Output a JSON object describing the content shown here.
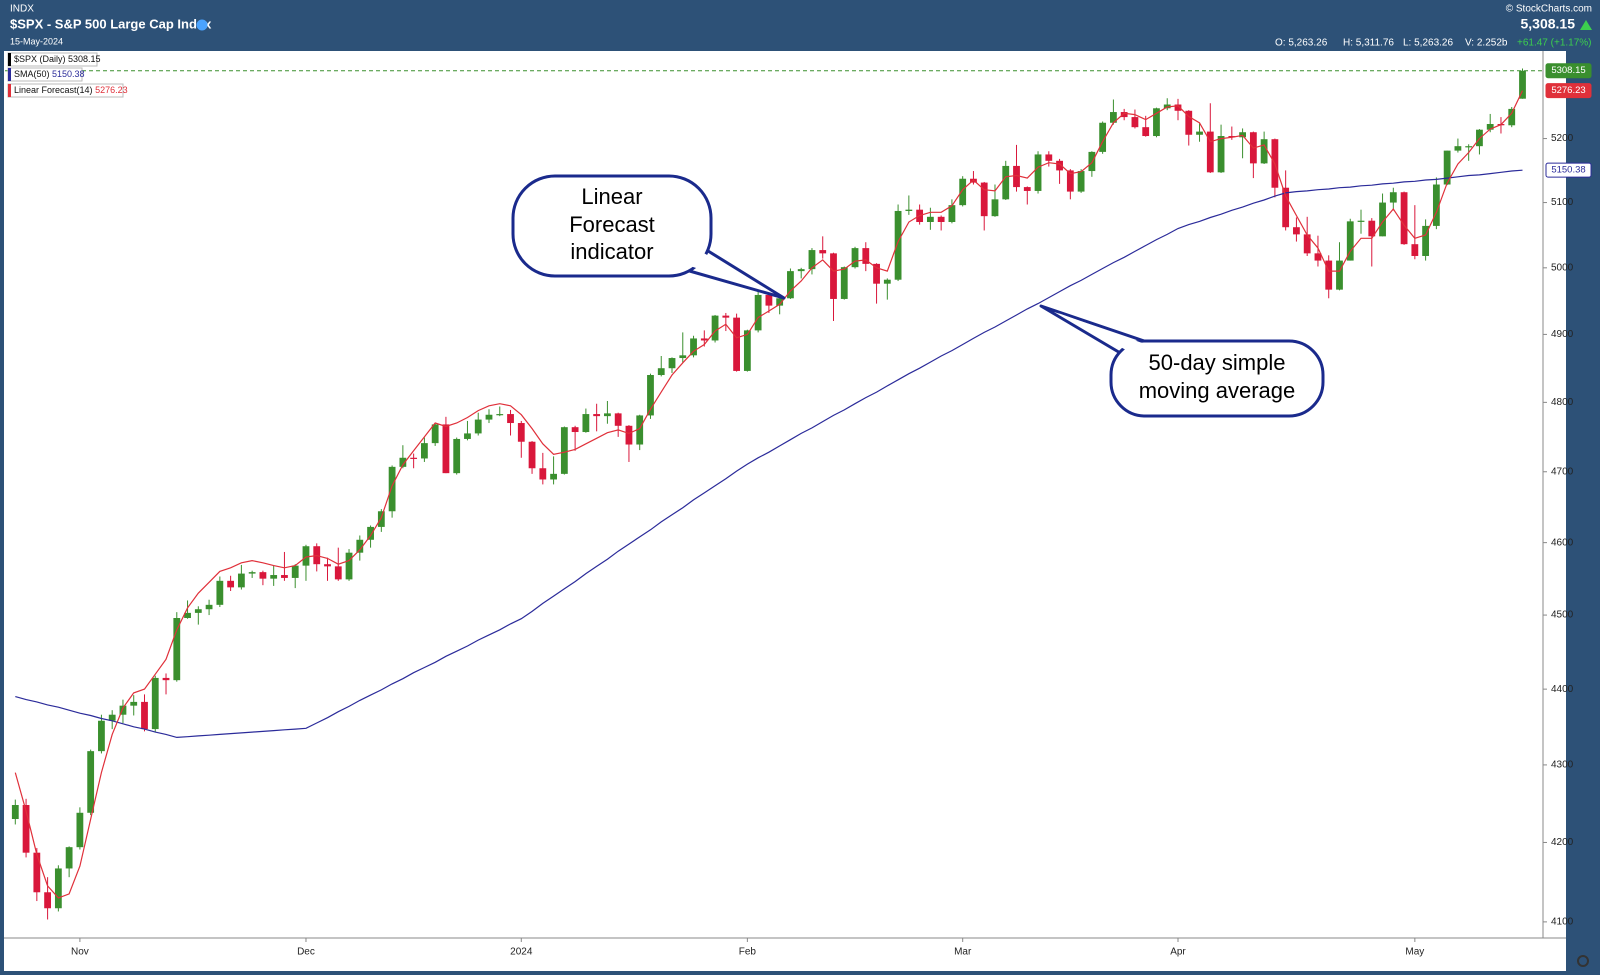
{
  "header": {
    "exchange": "INDX",
    "title": "$SPX - S&P 500 Large Cap Index",
    "date": "15-May-2024",
    "brand": "© StockCharts.com",
    "last": "5,308.15",
    "open": "O: 5,263.26",
    "high": "H: 5,311.76",
    "low": "L: 5,263.26",
    "volume": "V: 2.252b",
    "change": "+61.47 (+1.17%)"
  },
  "chart_data": {
    "type": "candlestick",
    "log": true,
    "last_line": true,
    "ylim": [
      4080,
      5340
    ],
    "yticks": [
      4100,
      4200,
      4300,
      4400,
      4500,
      4600,
      4700,
      4800,
      4900,
      5000,
      5100,
      5200
    ],
    "categories": [
      null,
      null,
      null,
      null,
      null,
      null,
      "Nov",
      null,
      null,
      null,
      null,
      null,
      null,
      null,
      null,
      null,
      null,
      null,
      null,
      null,
      null,
      null,
      null,
      null,
      null,
      null,
      null,
      "Dec",
      null,
      null,
      null,
      null,
      null,
      null,
      null,
      null,
      null,
      null,
      null,
      null,
      null,
      null,
      null,
      null,
      null,
      null,
      null,
      "2024",
      null,
      null,
      null,
      null,
      null,
      null,
      null,
      null,
      null,
      null,
      null,
      null,
      null,
      null,
      null,
      null,
      null,
      null,
      null,
      null,
      "Feb",
      null,
      null,
      null,
      null,
      null,
      null,
      null,
      null,
      null,
      null,
      null,
      null,
      null,
      null,
      null,
      null,
      null,
      null,
      null,
      "Mar",
      null,
      null,
      null,
      null,
      null,
      null,
      null,
      null,
      null,
      null,
      null,
      null,
      null,
      null,
      null,
      null,
      null,
      null,
      null,
      "Apr",
      null,
      null,
      null,
      null,
      null,
      null,
      null,
      null,
      null,
      null,
      null,
      null,
      null,
      null,
      null,
      null,
      null,
      null,
      null,
      null,
      null,
      "May",
      null,
      null,
      null,
      null,
      null,
      null,
      null,
      null,
      null,
      null
    ],
    "series": [
      {
        "name": "$SPX (Daily)",
        "up_color": "#3a8f2e",
        "down_color": "#d9173b",
        "open": [
          4230,
          4248,
          4187,
          4137,
          4117,
          4167,
          4194,
          4238,
          4318,
          4358,
          4366,
          4378,
          4383,
          4347,
          4415,
          4412,
          4496,
          4503,
          4508,
          4514,
          4547,
          4538,
          4557,
          4559,
          4550,
          4555,
          4551,
          4568,
          4595,
          4570,
          4567,
          4549,
          4586,
          4604,
          4622,
          4644,
          4707,
          4720,
          4719,
          4741,
          4768,
          4698,
          4747,
          4755,
          4775,
          4782,
          4783,
          4770,
          4743,
          4705,
          4689,
          4697,
          4764,
          4757,
          4783,
          4780,
          4784,
          4766,
          4739,
          4781,
          4840,
          4850,
          4865,
          4869,
          4894,
          4891,
          4928,
          4925,
          4846,
          4906,
          4959,
          4943,
          4954,
          4995,
          4998,
          5027,
          5022,
          4953,
          5001,
          5030,
          5006,
          4976,
          4982,
          5087,
          5089,
          5070,
          5078,
          5070,
          5096,
          5137,
          5131,
          5079,
          5105,
          5157,
          5124,
          5118,
          5175,
          5165,
          5150,
          5117,
          5149,
          5179,
          5225,
          5242,
          5234,
          5218,
          5204,
          5248,
          5254,
          5244,
          5206,
          5211,
          5147,
          5204,
          5202,
          5210,
          5161,
          5199,
          5123,
          5062,
          5051,
          5022,
          5011,
          4967,
          5011,
          5071,
          5072,
          5048,
          5100,
          5116,
          5036,
          5018,
          5064,
          5128,
          5181,
          5188,
          5188,
          5214,
          5223,
          5221,
          5263.26
        ],
        "high": [
          4255,
          4256,
          4193,
          4156,
          4171,
          4195,
          4245,
          4320,
          4366,
          4372,
          4386,
          4392,
          4393,
          4418,
          4421,
          4504,
          4520,
          4512,
          4521,
          4553,
          4554,
          4569,
          4561,
          4561,
          4568,
          4587,
          4570,
          4597,
          4599,
          4579,
          4593,
          4591,
          4610,
          4624,
          4647,
          4709,
          4738,
          4726,
          4749,
          4769,
          4779,
          4749,
          4773,
          4785,
          4790,
          4794,
          4789,
          4773,
          4744,
          4727,
          4722,
          4765,
          4766,
          4791,
          4798,
          4802,
          4785,
          4767,
          4782,
          4842,
          4868,
          4866,
          4903,
          4898,
          4906,
          4929,
          4932,
          4931,
          4907,
          4975,
          4964,
          4957,
          4999,
          5000,
          5030,
          5048,
          5023,
          5002,
          5032,
          5039,
          5007,
          4984,
          5097,
          5111,
          5097,
          5092,
          5080,
          5105,
          5141,
          5149,
          5132,
          5128,
          5165,
          5190,
          5125,
          5180,
          5180,
          5168,
          5152,
          5152,
          5180,
          5227,
          5262,
          5247,
          5246,
          5236,
          5249,
          5264,
          5263,
          5245,
          5224,
          5256,
          5222,
          5219,
          5216,
          5211,
          5211,
          5200,
          5150,
          5077,
          5078,
          5049,
          5019,
          5039,
          5075,
          5089,
          5076,
          5114,
          5123,
          5117,
          5096,
          5074,
          5139,
          5181,
          5200,
          5191,
          5215,
          5239,
          5234,
          5250,
          5311.76
        ],
        "low": [
          4223,
          4181,
          4126,
          4103,
          4113,
          4156,
          4191,
          4235,
          4315,
          4347,
          4355,
          4365,
          4344,
          4343,
          4393,
          4410,
          4495,
          4487,
          4500,
          4511,
          4533,
          4535,
          4551,
          4541,
          4540,
          4547,
          4537,
          4547,
          4560,
          4547,
          4547,
          4547,
          4575,
          4593,
          4615,
          4635,
          4705,
          4705,
          4714,
          4737,
          4698,
          4696,
          4745,
          4752,
          4770,
          4780,
          4752,
          4720,
          4697,
          4682,
          4682,
          4696,
          4730,
          4756,
          4758,
          4769,
          4750,
          4714,
          4731,
          4776,
          4838,
          4843,
          4858,
          4866,
          4882,
          4888,
          4905,
          4845,
          4845,
          4903,
          4932,
          4930,
          4953,
          4984,
          4990,
          5014,
          4920,
          4952,
          4999,
          4995,
          4946,
          4952,
          4980,
          5081,
          5066,
          5058,
          5057,
          5068,
          5094,
          5128,
          5057,
          5078,
          5104,
          5117,
          5097,
          5114,
          5156,
          5129,
          5105,
          5115,
          5140,
          5176,
          5222,
          5229,
          5216,
          5203,
          5202,
          5245,
          5229,
          5189,
          5195,
          5146,
          5146,
          5198,
          5169,
          5138,
          5160,
          5108,
          5057,
          5040,
          5018,
          5002,
          4954,
          4966,
          5011,
          5052,
          5002,
          5048,
          5089,
          5035,
          5013,
          5011,
          5059,
          5127,
          5178,
          5165,
          5175,
          5210,
          5208,
          5218,
          5263.26
        ],
        "close": [
          4248,
          4187,
          4137,
          4117,
          4167,
          4194,
          4238,
          4318,
          4358,
          4366,
          4378,
          4383,
          4347,
          4415,
          4412,
          4496,
          4503,
          4508,
          4514,
          4547,
          4538,
          4557,
          4559,
          4550,
          4555,
          4551,
          4568,
          4595,
          4570,
          4567,
          4549,
          4586,
          4604,
          4622,
          4644,
          4707,
          4720,
          4719,
          4741,
          4768,
          4698,
          4747,
          4755,
          4775,
          4782,
          4783,
          4770,
          4743,
          4705,
          4689,
          4697,
          4764,
          4757,
          4783,
          4780,
          4784,
          4766,
          4739,
          4781,
          4840,
          4850,
          4865,
          4869,
          4894,
          4891,
          4928,
          4925,
          4846,
          4906,
          4959,
          4943,
          4954,
          4995,
          4998,
          5027,
          5022,
          4953,
          5001,
          5030,
          5006,
          4976,
          4982,
          5087,
          5089,
          5070,
          5078,
          5070,
          5096,
          5137,
          5131,
          5079,
          5105,
          5157,
          5124,
          5118,
          5175,
          5165,
          5150,
          5117,
          5149,
          5179,
          5225,
          5242,
          5234,
          5218,
          5204,
          5248,
          5254,
          5244,
          5206,
          5211,
          5147,
          5204,
          5202,
          5210,
          5161,
          5199,
          5123,
          5062,
          5051,
          5022,
          5011,
          4967,
          5011,
          5071,
          5072,
          5048,
          5100,
          5116,
          5036,
          5018,
          5064,
          5128,
          5181,
          5188,
          5188,
          5214,
          5223,
          5221,
          5247,
          5308.15
        ]
      },
      {
        "name": "SMA(50)",
        "color": "#2b2b9a",
        "values": [
          4390,
          4386,
          4383,
          4379,
          4376,
          4372,
          4368,
          4365,
          4361,
          4358,
          4354,
          4350,
          4347,
          4343,
          4340,
          4336,
          4337,
          4338,
          4339,
          4340,
          4341,
          4342,
          4343,
          4344,
          4345,
          4346,
          4347,
          4348,
          4355,
          4362,
          4370,
          4377,
          4385,
          4392,
          4399,
          4407,
          4414,
          4422,
          4429,
          4436,
          4444,
          4451,
          4458,
          4466,
          4473,
          4480,
          4488,
          4495,
          4505,
          4516,
          4526,
          4536,
          4546,
          4557,
          4567,
          4577,
          4588,
          4598,
          4608,
          4618,
          4629,
          4639,
          4649,
          4660,
          4670,
          4680,
          4690,
          4701,
          4711,
          4720,
          4728,
          4737,
          4746,
          4755,
          4763,
          4772,
          4781,
          4789,
          4798,
          4807,
          4815,
          4824,
          4833,
          4842,
          4850,
          4859,
          4868,
          4876,
          4885,
          4894,
          4903,
          4911,
          4920,
          4929,
          4938,
          4946,
          4955,
          4964,
          4973,
          4981,
          4990,
          4999,
          5008,
          5016,
          5025,
          5034,
          5043,
          5051,
          5060,
          5066,
          5071,
          5077,
          5082,
          5088,
          5093,
          5099,
          5104,
          5110,
          5115,
          5117,
          5118,
          5120,
          5121,
          5123,
          5124,
          5126,
          5127,
          5129,
          5130,
          5132,
          5133,
          5135,
          5136,
          5138,
          5140,
          5142,
          5143,
          5145,
          5147,
          5149,
          5150.38
        ]
      },
      {
        "name": "Linear Forecast(14)",
        "color": "#e0303a",
        "values": [
          4290,
          4240,
          4185,
          4145,
          4130,
          4135,
          4170,
          4230,
          4290,
          4340,
          4375,
          4395,
          4400,
          4420,
          4440,
          4480,
          4510,
          4530,
          4545,
          4560,
          4565,
          4572,
          4575,
          4572,
          4568,
          4565,
          4568,
          4580,
          4582,
          4578,
          4570,
          4575,
          4590,
          4610,
          4635,
          4680,
          4710,
          4730,
          4750,
          4770,
          4765,
          4770,
          4778,
          4788,
          4795,
          4798,
          4795,
          4782,
          4762,
          4740,
          4725,
          4728,
          4732,
          4740,
          4748,
          4756,
          4760,
          4755,
          4762,
          4790,
          4815,
          4840,
          4858,
          4875,
          4885,
          4905,
          4915,
          4895,
          4900,
          4925,
          4935,
          4945,
          4965,
          4980,
          5000,
          5012,
          4995,
          4998,
          5010,
          5012,
          5000,
          4995,
          5040,
          5070,
          5080,
          5085,
          5085,
          5095,
          5120,
          5135,
          5120,
          5118,
          5140,
          5142,
          5138,
          5155,
          5162,
          5160,
          5145,
          5148,
          5162,
          5195,
          5225,
          5240,
          5238,
          5230,
          5240,
          5250,
          5252,
          5235,
          5225,
          5195,
          5200,
          5202,
          5205,
          5185,
          5190,
          5160,
          5110,
          5080,
          5050,
          5030,
          4995,
          4995,
          5025,
          5045,
          5045,
          5070,
          5090,
          5065,
          5045,
          5050,
          5085,
          5130,
          5160,
          5178,
          5200,
          5215,
          5222,
          5240,
          5276.23
        ]
      }
    ],
    "annotations": [
      {
        "lines": [
          "Linear",
          "Forecast",
          "indicator"
        ]
      },
      {
        "lines": [
          "50-day simple",
          "moving average"
        ]
      }
    ]
  }
}
